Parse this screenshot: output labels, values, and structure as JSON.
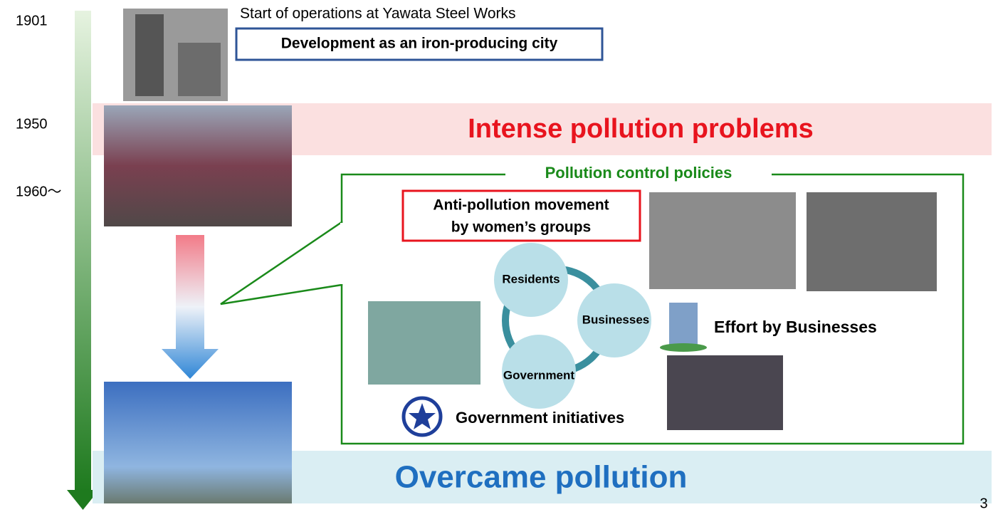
{
  "timeline": {
    "years": [
      "1901",
      "1950",
      "1960～"
    ]
  },
  "header": {
    "caption": "Start of operations at Yawata Steel Works",
    "boxed": "Development as an iron-producing city"
  },
  "pollution_banner": "Intense pollution problems",
  "policies": {
    "title": "Pollution control policies",
    "movement": [
      "Anti-pollution movement",
      "by women’s groups"
    ],
    "cycle": [
      "Residents",
      "Businesses",
      "Government"
    ],
    "business_effort": "Effort by Businesses",
    "government_initiatives": "Government initiatives"
  },
  "result_banner": "Overcame pollution",
  "page_number": "3"
}
